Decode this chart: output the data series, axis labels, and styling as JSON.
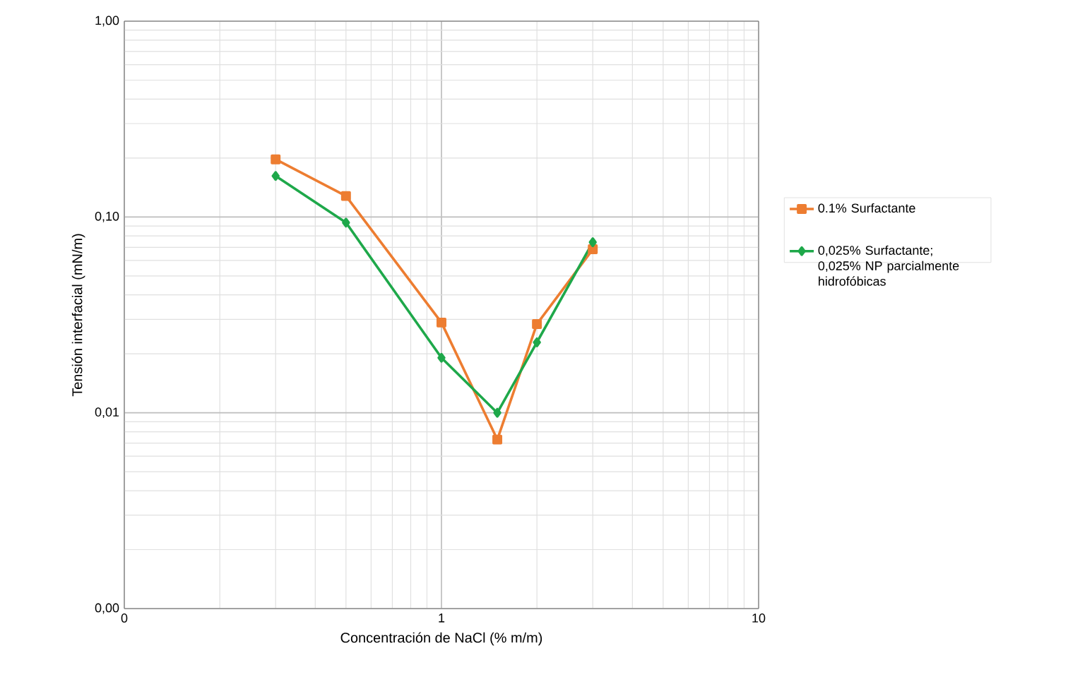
{
  "chart_data": {
    "type": "line",
    "xlabel": "Concentración de NaCl (% m/m)",
    "ylabel": "Tensión interfacial (mN/m)",
    "log": "xy",
    "grid": true,
    "legend": "right",
    "xlim": [
      0.1,
      10
    ],
    "ylim": [
      0.001,
      1
    ],
    "xticks": [
      {
        "value": 0.1,
        "label": "0"
      },
      1,
      10
    ],
    "yticks": [
      {
        "value": 0.001,
        "label": "0,00"
      },
      {
        "value": 0.01,
        "label": "0,01"
      },
      {
        "value": 0.1,
        "label": "0,10"
      },
      {
        "value": 1,
        "label": "1,00"
      }
    ],
    "x": [
      0.3,
      0.5,
      1,
      1.5,
      2,
      3
    ],
    "series": [
      {
        "name": "0.1% Surfactante",
        "color": "#ed7d31",
        "marker": "square",
        "values": [
          0.197,
          0.128,
          0.0289,
          0.0073,
          0.0284,
          0.0684
        ]
      },
      {
        "name": "0,025% Surfactante; 0,025% NP parcialmente hidrofóbicas",
        "color": "#1ea84a",
        "marker": "diamond",
        "values": [
          0.162,
          0.0936,
          0.0191,
          0.01,
          0.0229,
          0.0743
        ]
      }
    ]
  }
}
